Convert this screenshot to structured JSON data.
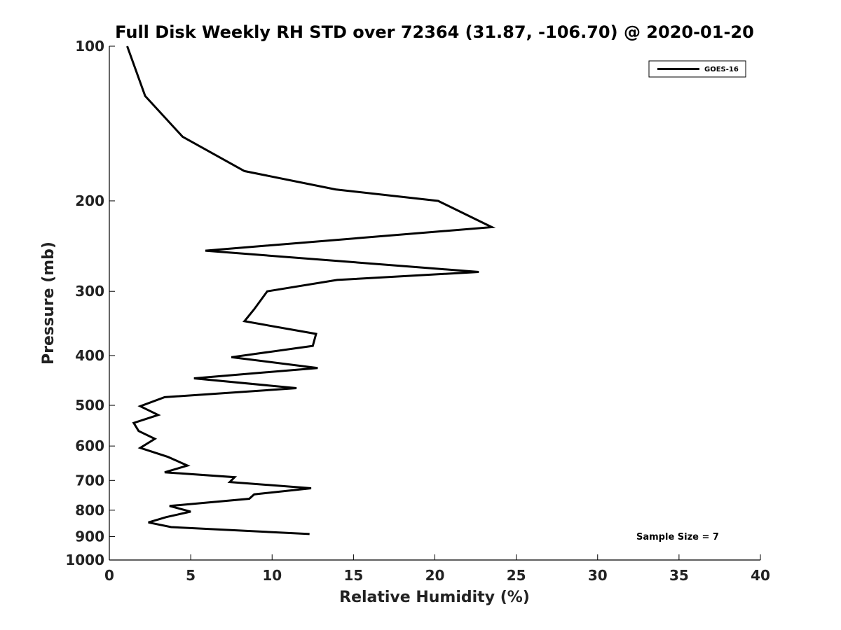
{
  "chart_data": {
    "type": "line",
    "title": "Full Disk Weekly RH STD over 72364 (31.87, -106.70) @ 2020-01-20",
    "xlabel": "Relative Humidity (%)",
    "ylabel": "Pressure (mb)",
    "xlim": [
      0,
      40
    ],
    "ylim": [
      100,
      1000
    ],
    "y_scale": "log",
    "y_direction": "reversed",
    "x_ticks": [
      0,
      5,
      10,
      15,
      20,
      25,
      30,
      35,
      40
    ],
    "x_tick_labels": [
      "0",
      "5",
      "10",
      "15",
      "20",
      "25",
      "30",
      "35",
      "40"
    ],
    "y_ticks": [
      100,
      200,
      300,
      400,
      500,
      600,
      700,
      800,
      900,
      1000
    ],
    "y_tick_labels": [
      "100",
      "200",
      "300",
      "400",
      "500",
      "600",
      "700",
      "800",
      "900",
      "1000"
    ],
    "grid": false,
    "legend": {
      "position": "top-right",
      "entries": [
        "GOES-16"
      ]
    },
    "annotation": "Sample Size = 7",
    "series": [
      {
        "name": "GOES-16",
        "color": "#000000",
        "points": [
          {
            "rh": 1.1,
            "p": 100
          },
          {
            "rh": 2.2,
            "p": 125
          },
          {
            "rh": 4.5,
            "p": 150
          },
          {
            "rh": 8.3,
            "p": 175
          },
          {
            "rh": 13.9,
            "p": 190
          },
          {
            "rh": 20.2,
            "p": 200
          },
          {
            "rh": 23.5,
            "p": 225
          },
          {
            "rh": 5.9,
            "p": 250
          },
          {
            "rh": 22.7,
            "p": 275
          },
          {
            "rh": 14.0,
            "p": 285
          },
          {
            "rh": 9.7,
            "p": 300
          },
          {
            "rh": 8.9,
            "p": 325
          },
          {
            "rh": 8.3,
            "p": 343
          },
          {
            "rh": 12.7,
            "p": 363
          },
          {
            "rh": 12.5,
            "p": 383
          },
          {
            "rh": 7.5,
            "p": 403
          },
          {
            "rh": 12.8,
            "p": 423
          },
          {
            "rh": 5.2,
            "p": 443
          },
          {
            "rh": 11.5,
            "p": 463
          },
          {
            "rh": 3.4,
            "p": 482
          },
          {
            "rh": 1.9,
            "p": 502
          },
          {
            "rh": 3.0,
            "p": 522
          },
          {
            "rh": 1.5,
            "p": 541
          },
          {
            "rh": 1.8,
            "p": 561
          },
          {
            "rh": 2.8,
            "p": 581
          },
          {
            "rh": 1.9,
            "p": 605
          },
          {
            "rh": 3.6,
            "p": 630
          },
          {
            "rh": 4.8,
            "p": 655
          },
          {
            "rh": 3.4,
            "p": 675
          },
          {
            "rh": 7.7,
            "p": 690
          },
          {
            "rh": 7.4,
            "p": 705
          },
          {
            "rh": 12.4,
            "p": 725
          },
          {
            "rh": 8.9,
            "p": 745
          },
          {
            "rh": 8.6,
            "p": 760
          },
          {
            "rh": 3.7,
            "p": 785
          },
          {
            "rh": 5.0,
            "p": 805
          },
          {
            "rh": 3.5,
            "p": 825
          },
          {
            "rh": 2.4,
            "p": 845
          },
          {
            "rh": 3.8,
            "p": 863
          },
          {
            "rh": 12.3,
            "p": 890
          }
        ]
      }
    ]
  }
}
